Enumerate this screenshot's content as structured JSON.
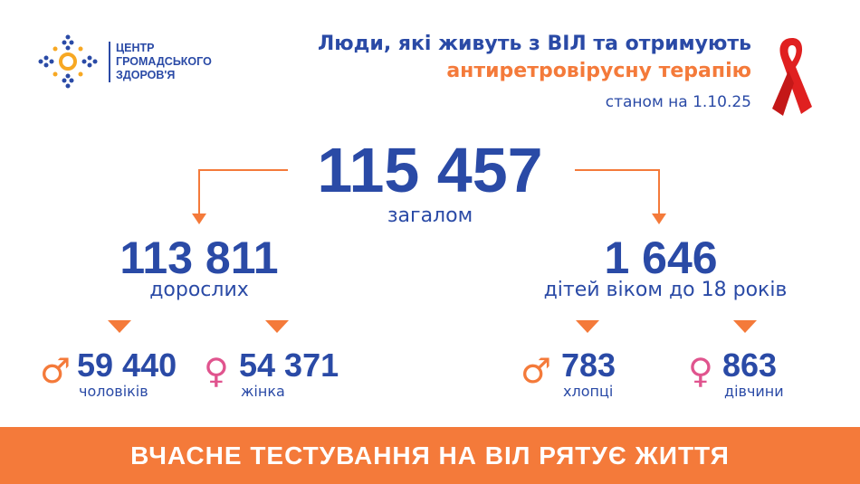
{
  "logo": {
    "lines": [
      "ЦЕНТР",
      "ГРОМАДСЬКОГО",
      "ЗДОРОВ'Я"
    ]
  },
  "header": {
    "title_line1": "Люди, які живуть з ВІЛ та отримують",
    "title_line2": "антиретровірусну терапію",
    "date": "станом на 1.10.25"
  },
  "total": {
    "value": "115 457",
    "label": "загалом"
  },
  "adults": {
    "value": "113 811",
    "label": "дорослих",
    "men": {
      "value": "59 440",
      "label": "чоловіків",
      "icon": "male-icon"
    },
    "women": {
      "value": "54 371",
      "label": "жінка",
      "icon": "female-icon"
    }
  },
  "children": {
    "value": "1 646",
    "label": "дітей віком до 18 років",
    "boys": {
      "value": "783",
      "label": "хлопці",
      "icon": "male-icon"
    },
    "girls": {
      "value": "863",
      "label": "дівчини",
      "icon": "female-icon"
    }
  },
  "banner": "ВЧАСНЕ ТЕСТУВАННЯ НА ВІЛ РЯТУЄ ЖИТТЯ",
  "colors": {
    "blue": "#2a4aa6",
    "orange": "#f47a3a",
    "pink": "#e0548e",
    "ribbon": "#e02020"
  }
}
